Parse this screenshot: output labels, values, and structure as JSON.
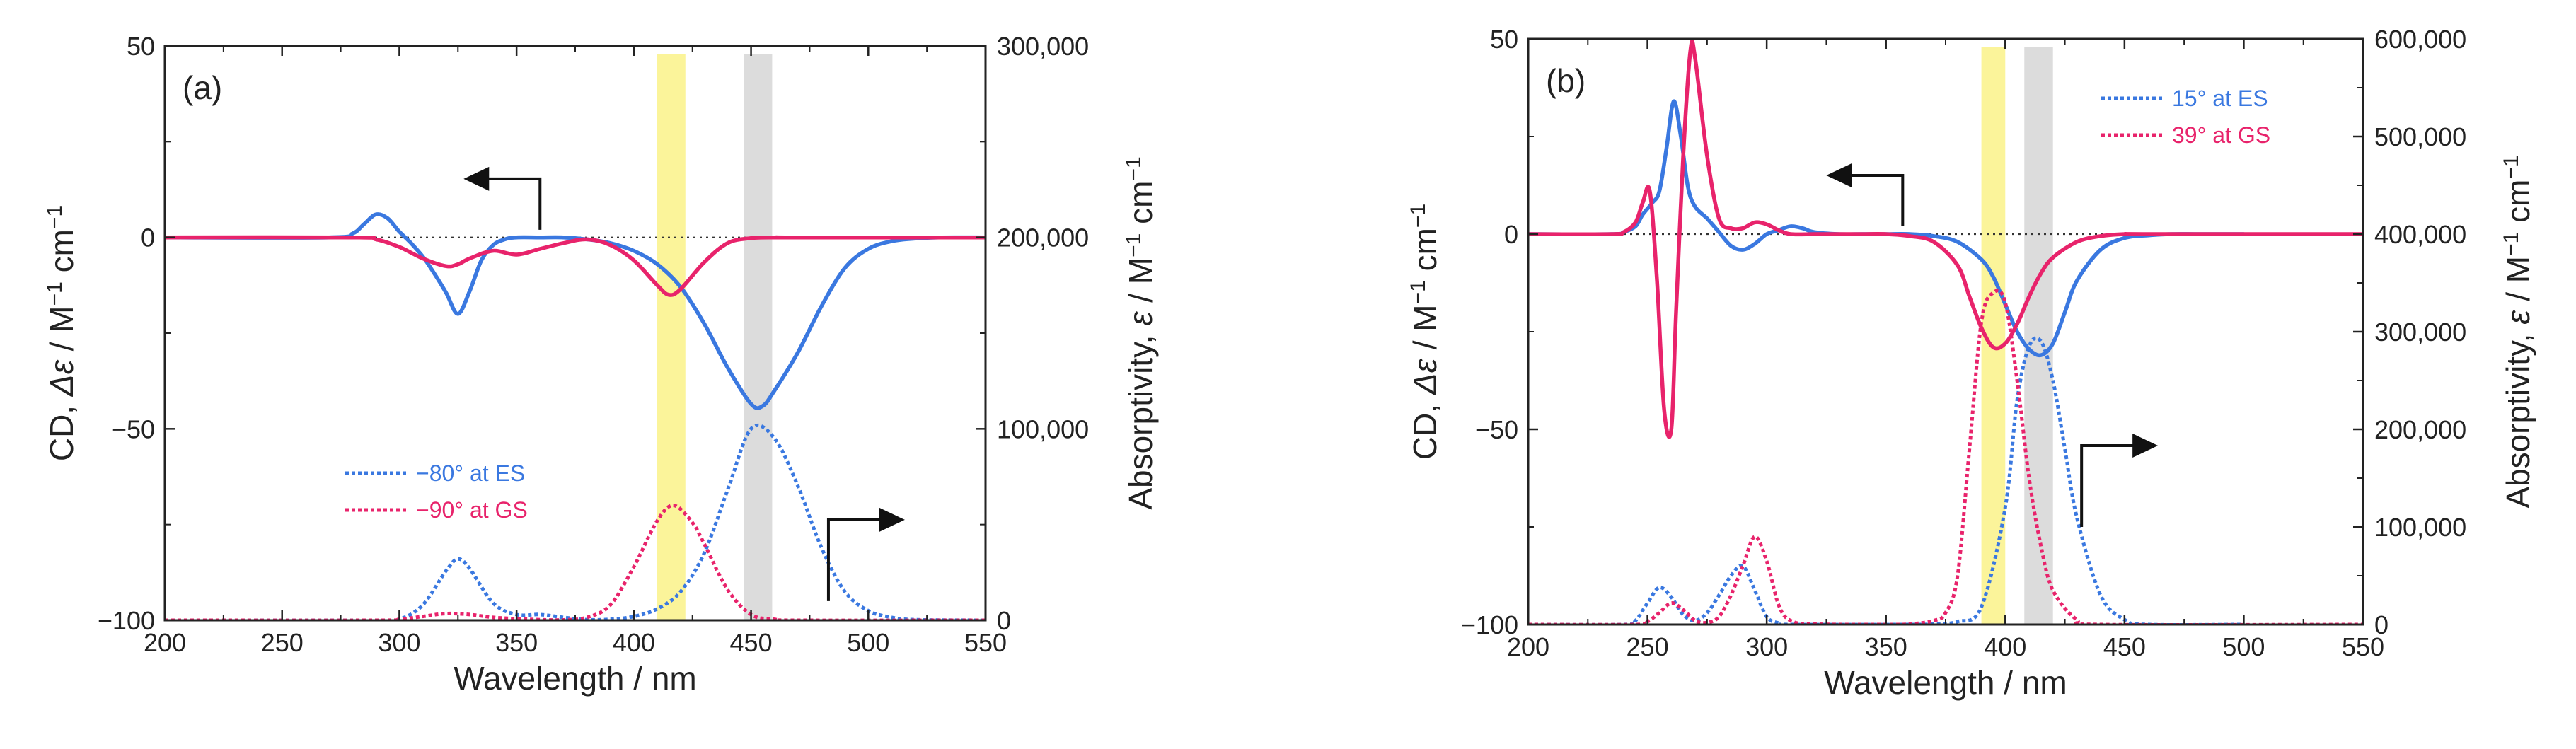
{
  "chart_data": [
    {
      "type": "line",
      "panel_label": "(a)",
      "xlabel": "Wavelength / nm",
      "ylabel_left": "CD, Δε / M⁻¹ cm⁻¹",
      "ylabel_left_parts": {
        "prefix": "CD, ",
        "symbol": "Δε",
        "unit": " / M",
        "sup1": "−1",
        "mid": " cm",
        "sup2": "−1"
      },
      "ylabel_right": "Absorptivity, ε / M⁻¹ cm⁻¹",
      "ylabel_right_parts": {
        "prefix": "Absorptivity, ",
        "symbol": "ε",
        "unit": " / M",
        "sup1": "−1",
        "mid": " cm",
        "sup2": "−1"
      },
      "xlim": [
        200,
        550
      ],
      "ylim_left": [
        -100,
        50
      ],
      "ylim_right": [
        0,
        300000
      ],
      "x_ticks": [
        200,
        250,
        300,
        350,
        400,
        450,
        500,
        550
      ],
      "x_tick_labels": [
        "200",
        "250",
        "300",
        "350",
        "400",
        "450",
        "500",
        "550"
      ],
      "y_left_ticks": [
        -100,
        -50,
        0,
        50
      ],
      "y_left_tick_labels": [
        "−100",
        "−50",
        "0",
        "50"
      ],
      "y_right_ticks": [
        0,
        100000,
        200000,
        300000
      ],
      "y_right_tick_labels": [
        "0",
        "100,000",
        "200,000",
        "300,000"
      ],
      "highlight_bands": [
        {
          "x0": 410,
          "x1": 422,
          "color": "#fbf49a"
        },
        {
          "x0": 447,
          "x1": 459,
          "color": "#dcdcdc"
        }
      ],
      "zero_line": 0,
      "series": [
        {
          "name": "−80° at ES",
          "color": "#3a78e0",
          "axis": "left",
          "style": "solid",
          "x": [
            200,
            270,
            280,
            285,
            290,
            295,
            300,
            305,
            310,
            315,
            320,
            325,
            330,
            335,
            340,
            345,
            350,
            360,
            370,
            380,
            390,
            400,
            410,
            420,
            430,
            440,
            450,
            455,
            460,
            470,
            480,
            490,
            500,
            510,
            520,
            530,
            550
          ],
          "y": [
            0,
            0,
            1,
            3.5,
            6,
            5,
            1.5,
            -1.5,
            -5,
            -9.5,
            -14.5,
            -20,
            -14,
            -6,
            -2,
            -0.5,
            0,
            0,
            0,
            -0.5,
            -1.5,
            -3.5,
            -7,
            -13,
            -22.5,
            -34,
            -43.5,
            -44,
            -40,
            -30,
            -18,
            -8,
            -3,
            -1,
            -0.3,
            0,
            0
          ]
        },
        {
          "name": "−90° at GS",
          "color": "#e8236b",
          "axis": "left",
          "style": "solid",
          "x": [
            200,
            280,
            290,
            300,
            310,
            320,
            325,
            330,
            340,
            350,
            360,
            370,
            380,
            390,
            400,
            410,
            415,
            420,
            430,
            440,
            450,
            460,
            470,
            550
          ],
          "y": [
            0,
            0,
            -0.5,
            -2.5,
            -5.5,
            -7.5,
            -7,
            -5.5,
            -3.5,
            -4.5,
            -3,
            -1.5,
            -0.5,
            -2,
            -6,
            -12.5,
            -15,
            -13.5,
            -6.5,
            -1.5,
            -0.2,
            0,
            0,
            0
          ]
        },
        {
          "name": "−80° at ES",
          "color": "#3a78e0",
          "axis": "right",
          "style": "dotted",
          "x": [
            200,
            290,
            300,
            310,
            320,
            325,
            330,
            340,
            350,
            360,
            370,
            380,
            390,
            400,
            410,
            420,
            430,
            440,
            450,
            460,
            470,
            480,
            490,
            500,
            510,
            520,
            550
          ],
          "y": [
            0,
            0,
            500,
            8000,
            26000,
            32000,
            27000,
            9000,
            3000,
            3000,
            1500,
            300,
            500,
            2000,
            6000,
            15000,
            35000,
            68000,
            100000,
            95000,
            70000,
            38000,
            15000,
            5000,
            1500,
            300,
            0
          ]
        },
        {
          "name": "−90° at GS",
          "color": "#e8236b",
          "axis": "right",
          "style": "dotted",
          "x": [
            200,
            290,
            300,
            310,
            320,
            330,
            340,
            350,
            360,
            370,
            380,
            390,
            400,
            410,
            417,
            425,
            430,
            440,
            450,
            460,
            470,
            550
          ],
          "y": [
            0,
            0,
            500,
            2000,
            3500,
            3000,
            1500,
            800,
            300,
            200,
            1500,
            8000,
            28000,
            52000,
            60000,
            51000,
            40000,
            16000,
            3000,
            500,
            0,
            0
          ]
        }
      ],
      "legend": {
        "position": "lower-left",
        "entries": [
          "−80° at ES",
          "−90° at GS"
        ]
      },
      "arrows": [
        {
          "direction": "left",
          "data_x": 360,
          "data_y": 2,
          "points_to": "left-axis"
        },
        {
          "direction": "right",
          "data_x": 483,
          "data_y": -95,
          "points_to": "right-axis"
        }
      ]
    },
    {
      "type": "line",
      "panel_label": "(b)",
      "xlabel": "Wavelength / nm",
      "ylabel_left": "CD, Δε / M⁻¹ cm⁻¹",
      "ylabel_left_parts": {
        "prefix": "CD, ",
        "symbol": "Δε",
        "unit": " / M",
        "sup1": "−1",
        "mid": " cm",
        "sup2": "−1"
      },
      "ylabel_right": "Absorptivity, ε / M⁻¹ cm⁻¹",
      "ylabel_right_parts": {
        "prefix": "Absorptivity, ",
        "symbol": "ε",
        "unit": " / M",
        "sup1": "−1",
        "mid": " cm",
        "sup2": "−1"
      },
      "xlim": [
        200,
        550
      ],
      "ylim_left": [
        -100,
        50
      ],
      "ylim_right": [
        0,
        600000
      ],
      "x_ticks": [
        200,
        250,
        300,
        350,
        400,
        450,
        500,
        550
      ],
      "x_tick_labels": [
        "200",
        "250",
        "300",
        "350",
        "400",
        "450",
        "500",
        "550"
      ],
      "y_left_ticks": [
        -100,
        -50,
        0,
        50
      ],
      "y_left_tick_labels": [
        "−100",
        "−50",
        "0",
        "50"
      ],
      "y_right_ticks": [
        0,
        100000,
        200000,
        300000,
        400000,
        500000,
        600000
      ],
      "y_right_tick_labels": [
        "0",
        "100,000",
        "200,000",
        "300,000",
        "400,000",
        "500,000",
        "600,000"
      ],
      "highlight_bands": [
        {
          "x0": 390,
          "x1": 400,
          "color": "#fbf49a"
        },
        {
          "x0": 408,
          "x1": 420,
          "color": "#dcdcdc"
        }
      ],
      "zero_line": 0,
      "series": [
        {
          "name": "15° at ES",
          "color": "#3a78e0",
          "axis": "left",
          "style": "solid",
          "x": [
            200,
            235,
            240,
            245,
            248,
            252,
            255,
            258,
            261,
            264,
            267,
            270,
            275,
            280,
            285,
            290,
            295,
            300,
            305,
            310,
            315,
            320,
            330,
            340,
            350,
            360,
            370,
            380,
            390,
            395,
            400,
            405,
            410,
            415,
            420,
            425,
            430,
            440,
            450,
            460,
            470,
            480,
            490,
            500
          ],
          "y": [
            0,
            0,
            0.5,
            2,
            5,
            8,
            11,
            22,
            34,
            25,
            12,
            7,
            4,
            0.5,
            -3,
            -4,
            -2.5,
            0,
            1,
            2,
            1.5,
            0.5,
            0,
            0,
            0,
            0,
            -0.5,
            -2,
            -6.5,
            -11,
            -18,
            -25,
            -29.5,
            -31,
            -28,
            -20,
            -12,
            -4,
            -1,
            -0.3,
            0,
            0,
            0,
            0
          ]
        },
        {
          "name": "39° at GS",
          "color": "#e8236b",
          "axis": "left",
          "style": "solid",
          "x": [
            200,
            235,
            240,
            245,
            248,
            251,
            254,
            257,
            260,
            262,
            265,
            268,
            270,
            275,
            280,
            285,
            290,
            295,
            300,
            305,
            310,
            320,
            330,
            340,
            350,
            360,
            370,
            380,
            385,
            390,
            395,
            400,
            405,
            410,
            415,
            420,
            430,
            440,
            450,
            460,
            550
          ],
          "y": [
            0,
            0,
            0.5,
            3,
            8,
            11,
            -12,
            -45,
            -50,
            -20,
            20,
            47,
            45,
            20,
            4,
            1.5,
            1.5,
            3,
            2.5,
            1,
            0,
            0,
            0,
            0,
            0,
            -0.5,
            -2,
            -8,
            -16,
            -24,
            -29,
            -28,
            -23,
            -16,
            -10,
            -6,
            -2,
            -0.5,
            0,
            0,
            0
          ]
        },
        {
          "name": "15° at ES",
          "color": "#3a78e0",
          "axis": "right",
          "style": "dotted",
          "x": [
            200,
            240,
            245,
            250,
            255,
            260,
            265,
            270,
            275,
            280,
            285,
            290,
            295,
            300,
            305,
            310,
            360,
            370,
            380,
            390,
            400,
            405,
            410,
            415,
            420,
            425,
            430,
            440,
            450,
            460,
            500
          ],
          "y": [
            0,
            0,
            4000,
            22000,
            38000,
            28000,
            10000,
            4000,
            12000,
            30000,
            50000,
            60000,
            35000,
            8000,
            1500,
            0,
            0,
            500,
            3000,
            18000,
            120000,
            230000,
            285000,
            290000,
            250000,
            180000,
            110000,
            30000,
            5000,
            0,
            0
          ]
        },
        {
          "name": "39° at GS",
          "color": "#e8236b",
          "axis": "right",
          "style": "dotted",
          "x": [
            200,
            245,
            250,
            255,
            260,
            265,
            270,
            275,
            280,
            285,
            290,
            295,
            300,
            305,
            310,
            320,
            350,
            360,
            370,
            375,
            380,
            385,
            390,
            395,
            400,
            405,
            410,
            415,
            420,
            430,
            440,
            550
          ],
          "y": [
            0,
            0,
            3000,
            12000,
            22000,
            15000,
            4000,
            2000,
            8000,
            30000,
            60000,
            90000,
            65000,
            20000,
            4000,
            500,
            0,
            500,
            4000,
            12000,
            50000,
            180000,
            310000,
            340000,
            330000,
            250000,
            150000,
            80000,
            35000,
            5000,
            0,
            0
          ]
        }
      ],
      "legend": {
        "position": "top-right",
        "entries": [
          "15° at ES",
          "39° at GS"
        ]
      },
      "arrows": [
        {
          "direction": "left",
          "data_x": 357,
          "data_y": 2,
          "points_to": "left-axis"
        },
        {
          "direction": "right",
          "data_x": 432,
          "data_y": -75,
          "points_to": "right-axis"
        }
      ]
    }
  ]
}
